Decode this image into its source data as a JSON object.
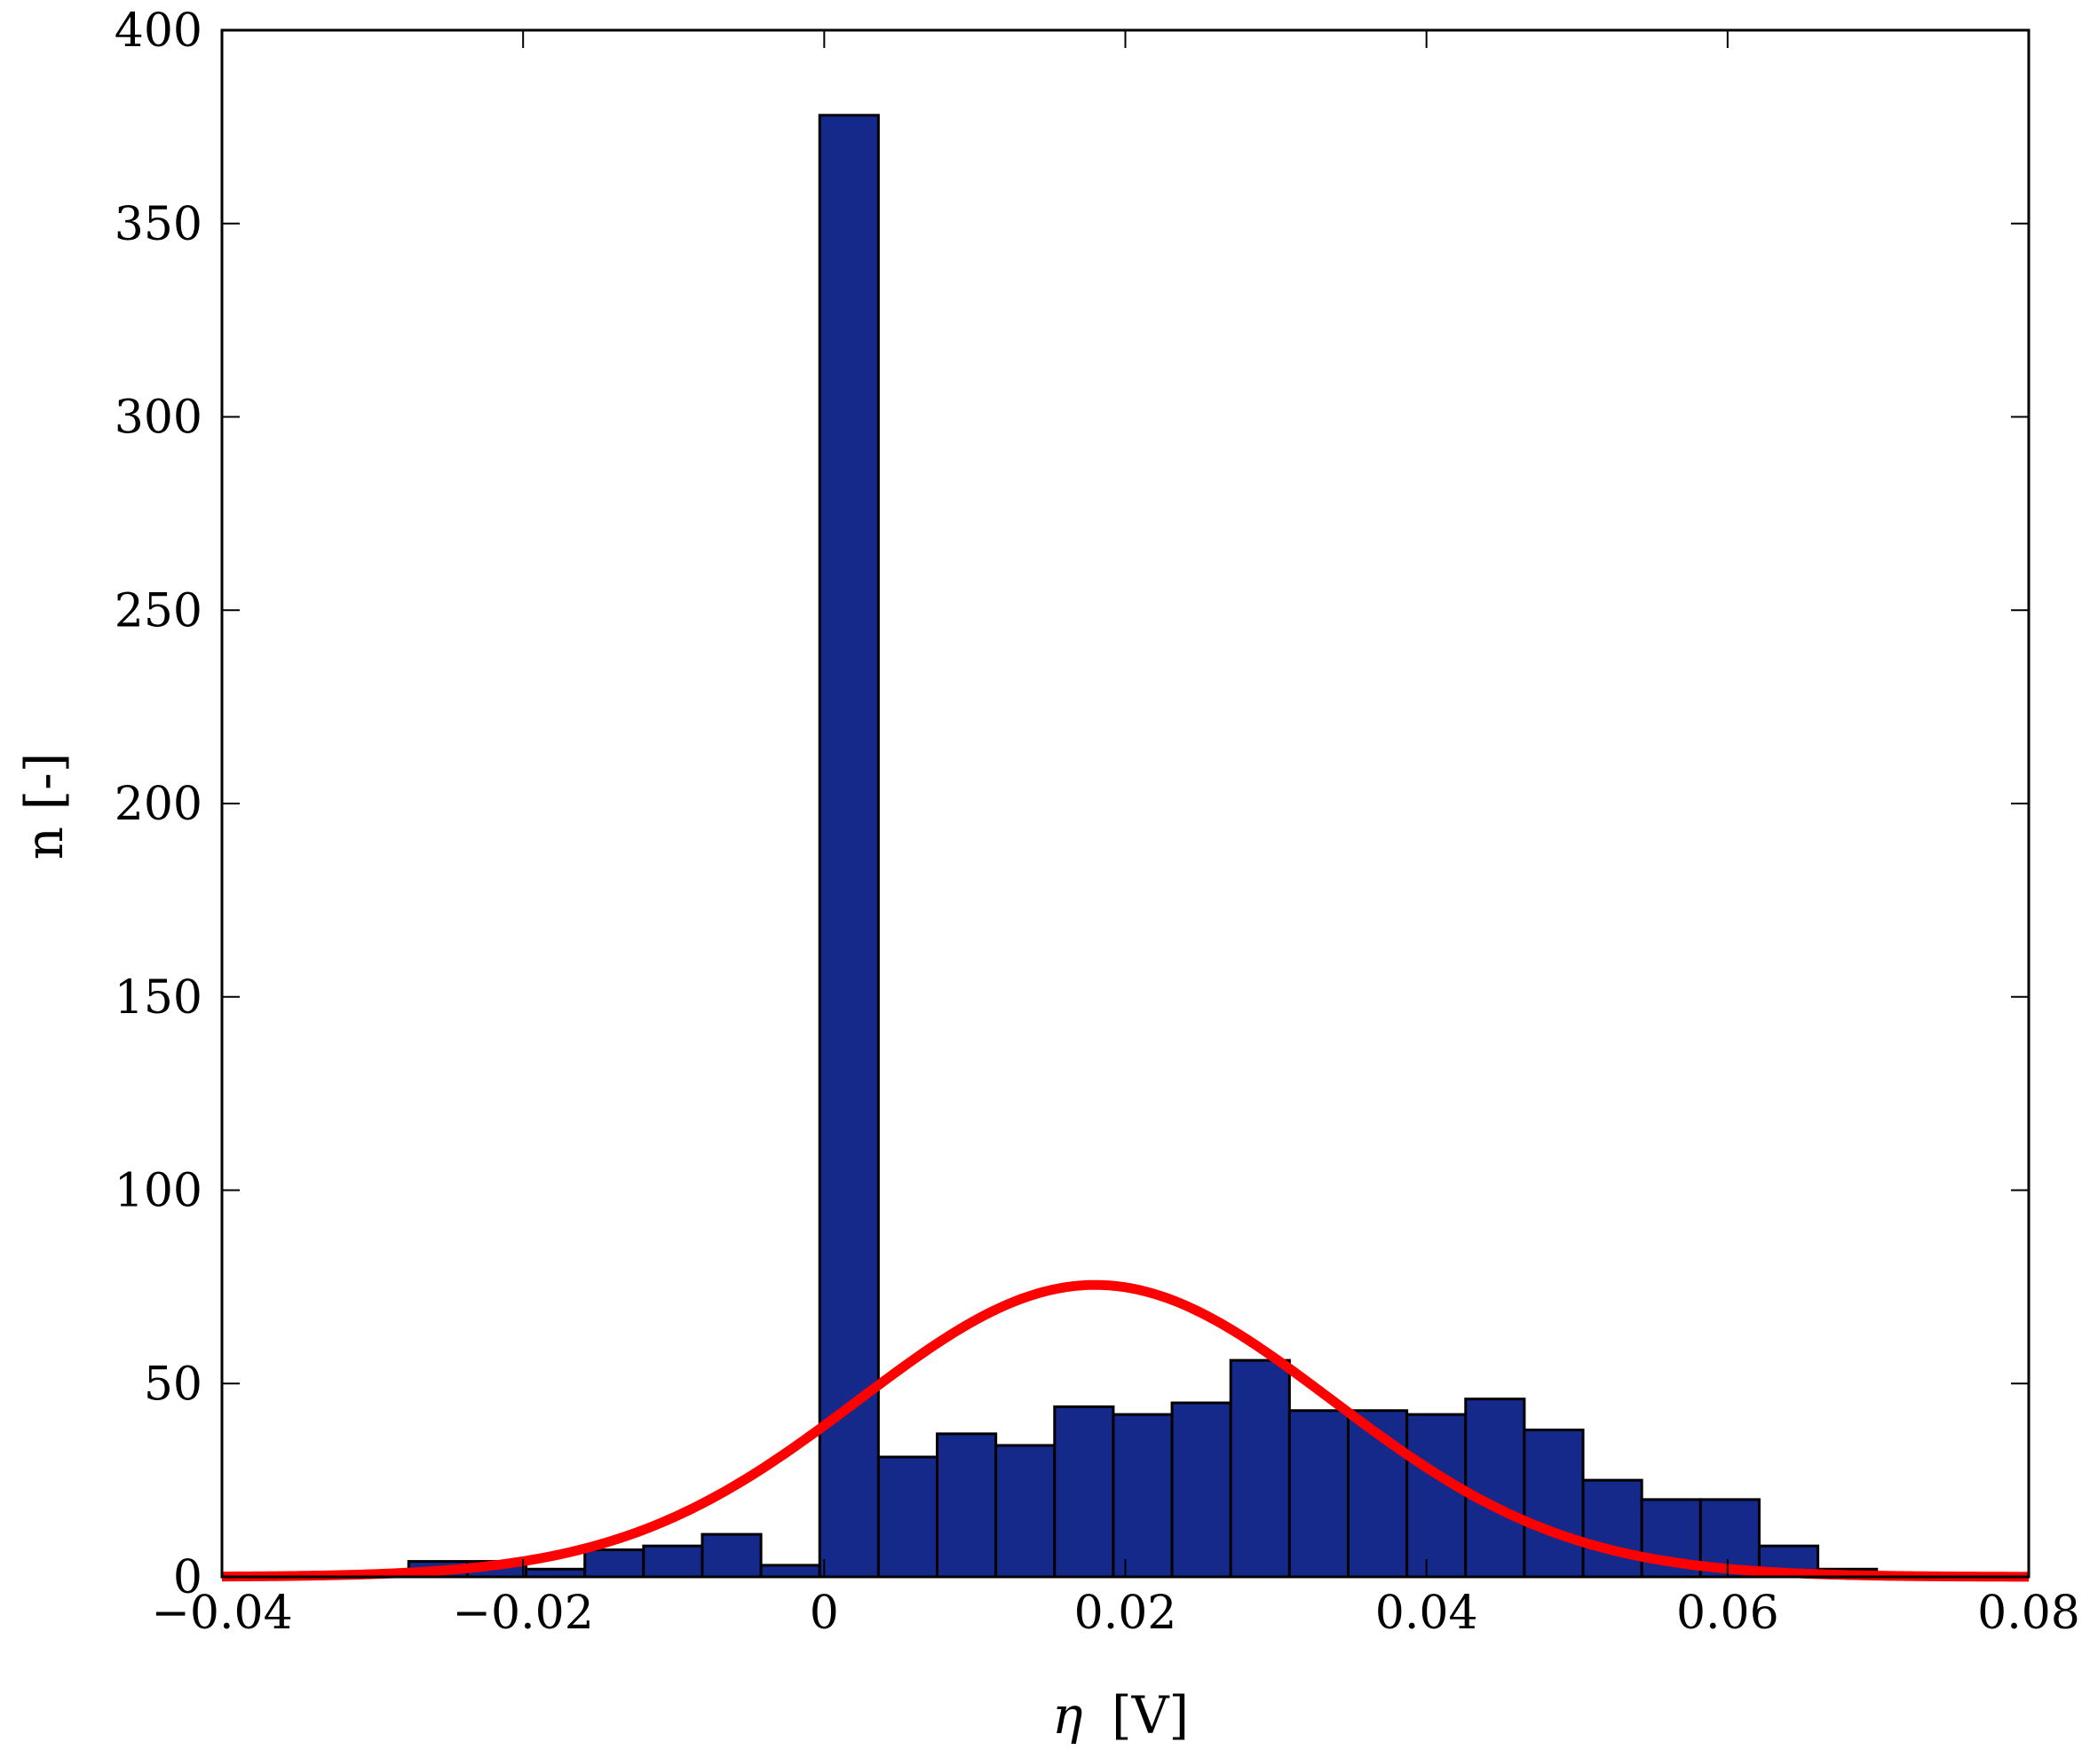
{
  "chart_data": {
    "type": "bar",
    "xlabel_symbol": "η",
    "xlabel_unit": "[V]",
    "ylabel": "n [-]",
    "xlim": [
      -0.04,
      0.08
    ],
    "ylim": [
      0,
      400
    ],
    "x_ticks": [
      -0.04,
      -0.02,
      0,
      0.02,
      0.04,
      0.06,
      0.08
    ],
    "x_tick_labels": [
      "−0.04",
      "−0.02",
      "0",
      "0.02",
      "0.04",
      "0.06",
      "0.08"
    ],
    "y_ticks": [
      0,
      50,
      100,
      150,
      200,
      250,
      300,
      350,
      400
    ],
    "y_tick_labels": [
      "0",
      "50",
      "100",
      "150",
      "200",
      "250",
      "300",
      "350",
      "400"
    ],
    "grid": false,
    "bar_color": "#15298a",
    "bin_width": 0.0039,
    "bins": [
      {
        "x0": -0.0393,
        "count": 0
      },
      {
        "x0": -0.0354,
        "count": 0
      },
      {
        "x0": -0.0315,
        "count": 1
      },
      {
        "x0": -0.0276,
        "count": 4
      },
      {
        "x0": -0.0237,
        "count": 4
      },
      {
        "x0": -0.0198,
        "count": 2
      },
      {
        "x0": -0.0159,
        "count": 7
      },
      {
        "x0": -0.012,
        "count": 8
      },
      {
        "x0": -0.0081,
        "count": 11
      },
      {
        "x0": -0.0042,
        "count": 3
      },
      {
        "x0": -0.0003,
        "count": 378
      },
      {
        "x0": 0.0036,
        "count": 31
      },
      {
        "x0": 0.0075,
        "count": 37
      },
      {
        "x0": 0.0114,
        "count": 34
      },
      {
        "x0": 0.0153,
        "count": 44
      },
      {
        "x0": 0.0192,
        "count": 42
      },
      {
        "x0": 0.0231,
        "count": 45
      },
      {
        "x0": 0.027,
        "count": 56
      },
      {
        "x0": 0.0309,
        "count": 43
      },
      {
        "x0": 0.0348,
        "count": 43
      },
      {
        "x0": 0.0387,
        "count": 42
      },
      {
        "x0": 0.0426,
        "count": 46
      },
      {
        "x0": 0.0465,
        "count": 38
      },
      {
        "x0": 0.0504,
        "count": 25
      },
      {
        "x0": 0.0543,
        "count": 20
      },
      {
        "x0": 0.0582,
        "count": 20
      },
      {
        "x0": 0.0621,
        "count": 8
      },
      {
        "x0": 0.066,
        "count": 2
      },
      {
        "x0": 0.0699,
        "count": 1
      }
    ],
    "series": [
      {
        "type": "line",
        "color": "#ff0000",
        "gaussian": {
          "mean": 0.018,
          "sd": 0.0157,
          "peak": 75.5
        }
      }
    ]
  }
}
